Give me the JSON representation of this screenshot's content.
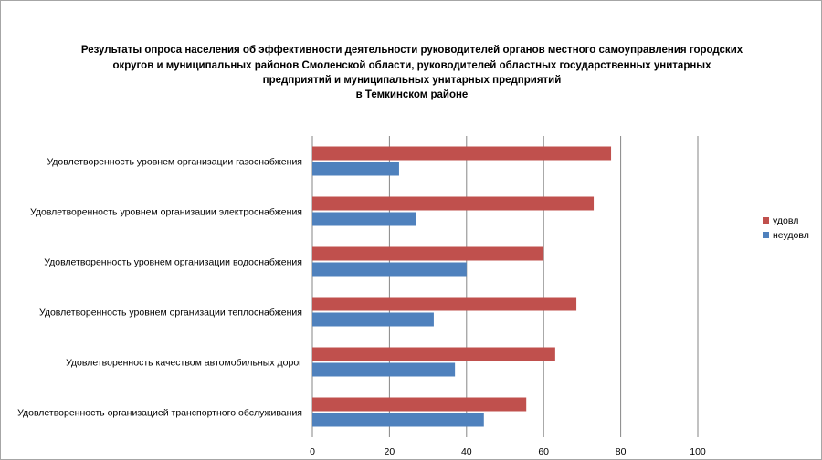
{
  "chart_data": {
    "type": "bar",
    "orientation": "horizontal",
    "title": [
      "Результаты опроса населения об эффективности деятельности руководителей органов местного самоуправления городских",
      "округов и муниципальных районов Смоленской области, руководителей областных государственных унитарных",
      "предприятий и муниципальных унитарных предприятий",
      "в Темкинском районе"
    ],
    "categories": [
      "Удовлетворенность уровнем организации газоснабжения",
      "Удовлетворенность уровнем организации электроснабжения",
      "Удовлетворенность уровнем организации водоснабжения",
      "Удовлетворенность уровнем организации теплоснабжения",
      "Удовлетворенность качеством автомобильных дорог",
      "Удовлетворенность организацией транспортного обслуживания"
    ],
    "series": [
      {
        "name": "удовл",
        "color": "#c0504d",
        "values": [
          77.5,
          73,
          60,
          68.5,
          63,
          55.5
        ]
      },
      {
        "name": "неудовл",
        "color": "#4f81bd",
        "values": [
          22.5,
          27,
          40,
          31.5,
          37,
          44.5
        ]
      }
    ],
    "xlim": [
      0,
      100
    ],
    "xticks": [
      0,
      20,
      40,
      60,
      80,
      100
    ],
    "grid": true,
    "legend_position": "right"
  }
}
